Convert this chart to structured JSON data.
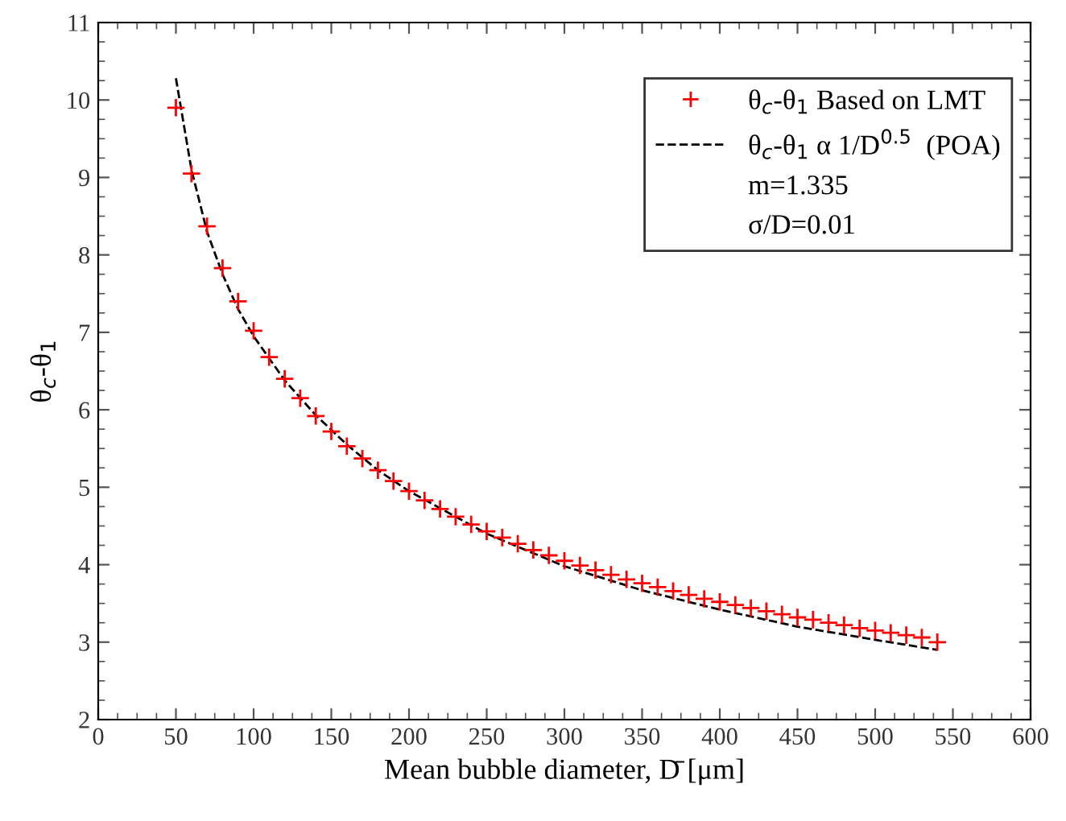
{
  "chart_data": {
    "type": "scatter",
    "xlabel": "Mean bubble diameter, D̄ [μm]",
    "ylabel": "θ$_{c}$-θ$_{1}$",
    "series": [
      {
        "name": "θ$_{c}$-θ$_{1}$ Based on LMT",
        "marker": "cross",
        "color": "#ff0000",
        "x": [
          50,
          60,
          70,
          80,
          90,
          100,
          110,
          120,
          130,
          140,
          150,
          160,
          170,
          180,
          190,
          200,
          210,
          220,
          230,
          240,
          250,
          260,
          270,
          280,
          290,
          300,
          310,
          320,
          330,
          340,
          350,
          360,
          370,
          380,
          390,
          400,
          410,
          420,
          430,
          440,
          450,
          460,
          470,
          480,
          490,
          500,
          510,
          520,
          530,
          540
        ],
        "values": [
          9.9,
          9.05,
          8.37,
          7.83,
          7.4,
          7.02,
          6.68,
          6.4,
          6.15,
          5.92,
          5.72,
          5.53,
          5.37,
          5.22,
          5.08,
          4.95,
          4.83,
          4.72,
          4.62,
          4.52,
          4.43,
          4.35,
          4.27,
          4.19,
          4.12,
          4.05,
          3.99,
          3.93,
          3.87,
          3.81,
          3.76,
          3.71,
          3.66,
          3.61,
          3.56,
          3.52,
          3.48,
          3.44,
          3.4,
          3.36,
          3.32,
          3.29,
          3.25,
          3.22,
          3.18,
          3.15,
          3.12,
          3.09,
          3.06,
          3.0
        ]
      },
      {
        "name": "θ$_{c}$-θ$_{1}$ α 1/D$^{0.5}$  (POA)",
        "type": "line",
        "line_style": "dashed",
        "marker": "none",
        "color": "#000000",
        "x": [
          50,
          60,
          70,
          80,
          90,
          100,
          120,
          140,
          160,
          180,
          200,
          250,
          300,
          350,
          400,
          450,
          500,
          540
        ],
        "values": [
          10.28,
          9.1,
          8.3,
          7.75,
          7.3,
          6.95,
          6.38,
          5.93,
          5.55,
          5.22,
          4.95,
          4.4,
          3.98,
          3.67,
          3.42,
          3.2,
          3.03,
          2.9
        ]
      }
    ],
    "annotations": [
      "m=1.335",
      "σ/D=0.01"
    ],
    "xlim": [
      0,
      600
    ],
    "xticks": [
      0,
      50,
      100,
      150,
      200,
      250,
      300,
      350,
      400,
      450,
      500,
      550,
      600
    ],
    "ylim": [
      2,
      11
    ],
    "yticks": [
      2,
      3,
      4,
      5,
      6,
      7,
      8,
      9,
      10,
      11
    ],
    "grid": false,
    "legend": "top right"
  }
}
